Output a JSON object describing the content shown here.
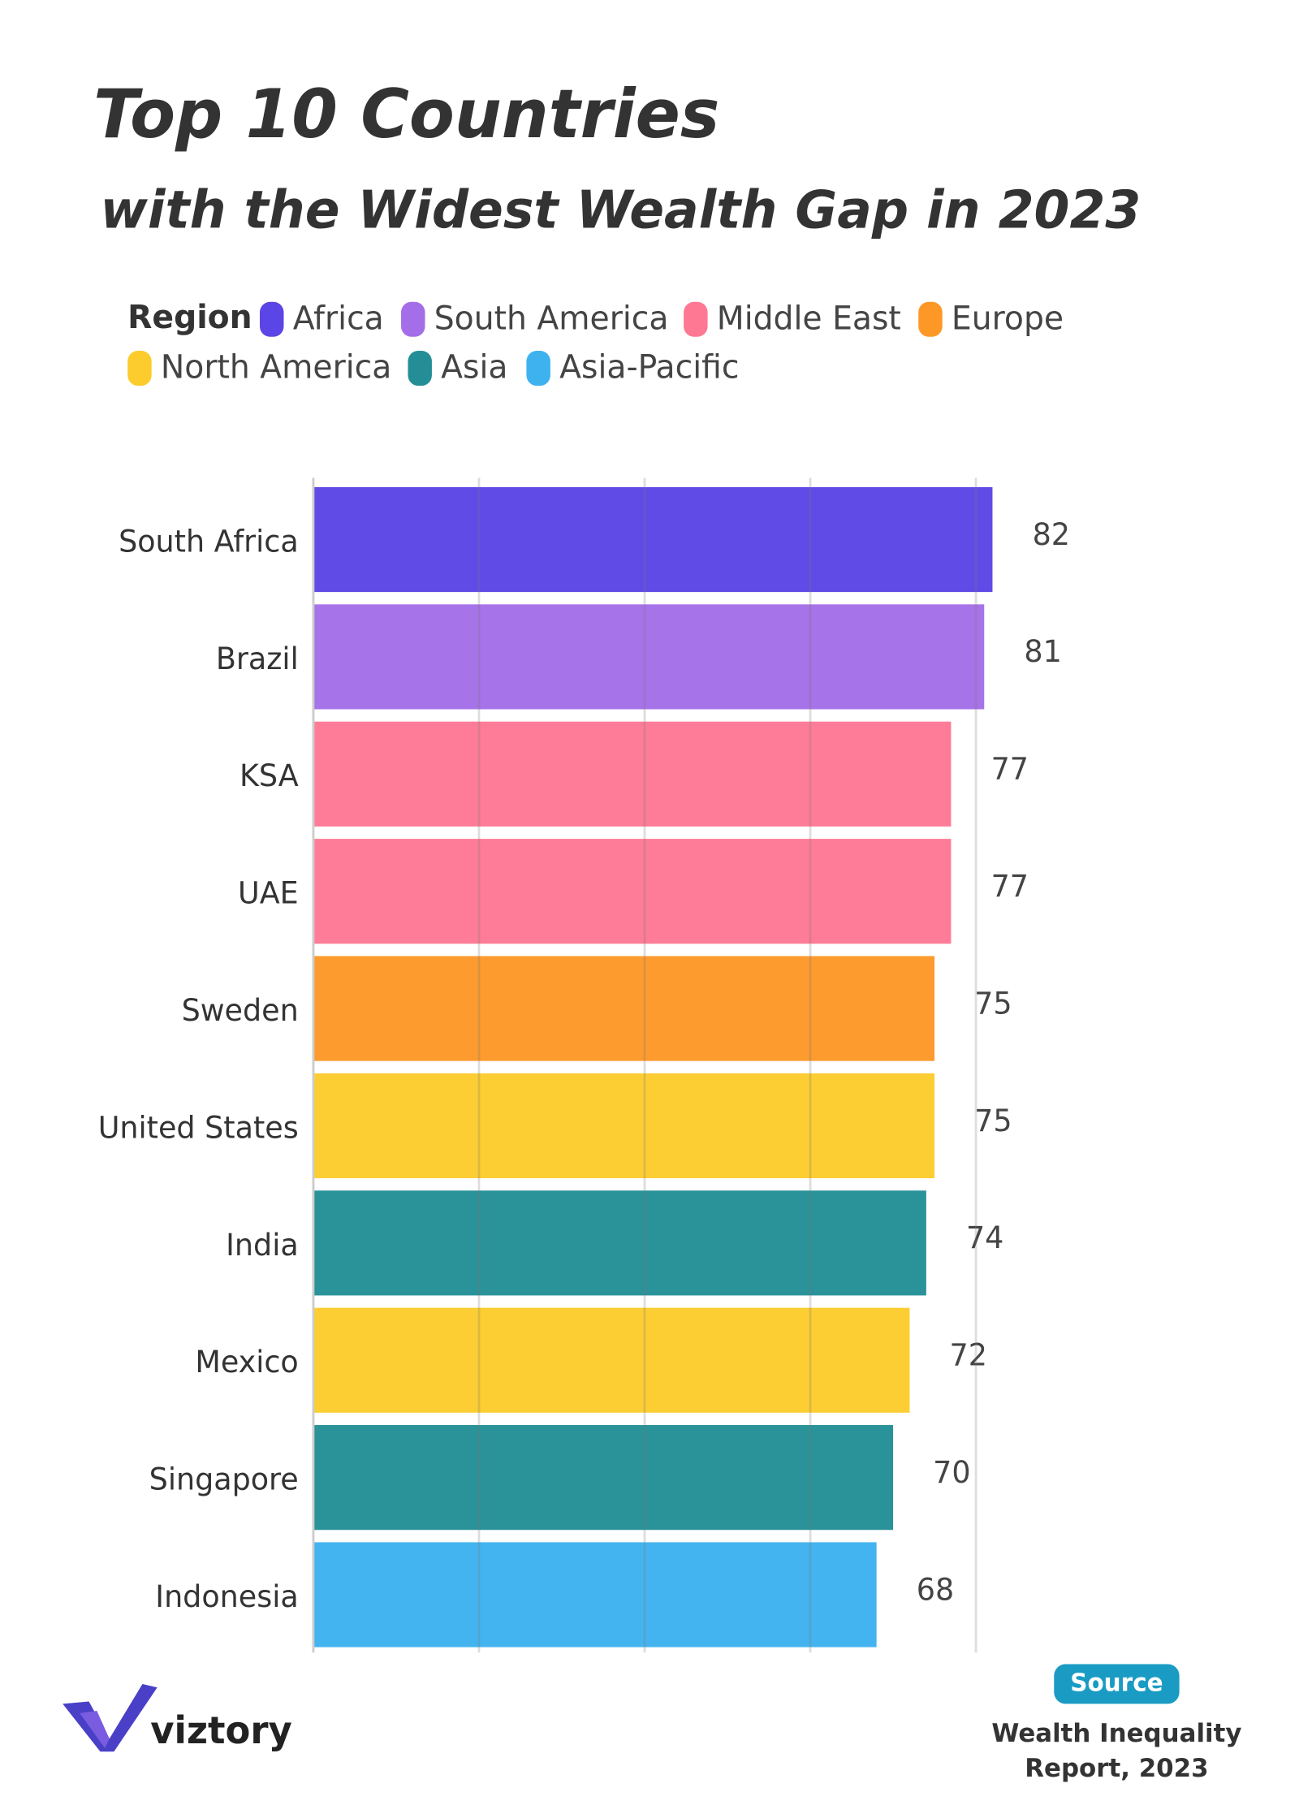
{
  "chart_data": {
    "type": "bar",
    "orientation": "horizontal",
    "title": "Top 10 Countries",
    "subtitle": "with the Widest Wealth Gap in 2023",
    "legend_title": "Region",
    "legend": [
      {
        "name": "Africa",
        "color": "#5b45e6"
      },
      {
        "name": "South America",
        "color": "#a46ee8"
      },
      {
        "name": "Middle East",
        "color": "#fe7894"
      },
      {
        "name": "Europe",
        "color": "#fd9827"
      },
      {
        "name": "North America",
        "color": "#fccc2c"
      },
      {
        "name": "Asia",
        "color": "#238e96"
      },
      {
        "name": "Asia-Pacific",
        "color": "#3db2ee"
      }
    ],
    "categories": [
      "South Africa",
      "Brazil",
      "KSA",
      "UAE",
      "Sweden",
      "United States",
      "India",
      "Mexico",
      "Singapore",
      "Indonesia"
    ],
    "values": [
      82,
      81,
      77,
      77,
      75,
      75,
      74,
      72,
      70,
      68
    ],
    "colors": [
      "#5b45e6",
      "#a46ee8",
      "#fe7894",
      "#fe7894",
      "#fd9827",
      "#fccc2c",
      "#238e96",
      "#fccc2c",
      "#238e96",
      "#3db2ee"
    ],
    "xlim": [
      0,
      82
    ],
    "xticks": [
      0,
      20,
      40,
      60,
      80
    ],
    "grid": true,
    "source_label": "Source",
    "source": [
      "Wealth Inequality",
      "Report, 2023"
    ],
    "brand": "viztory"
  }
}
